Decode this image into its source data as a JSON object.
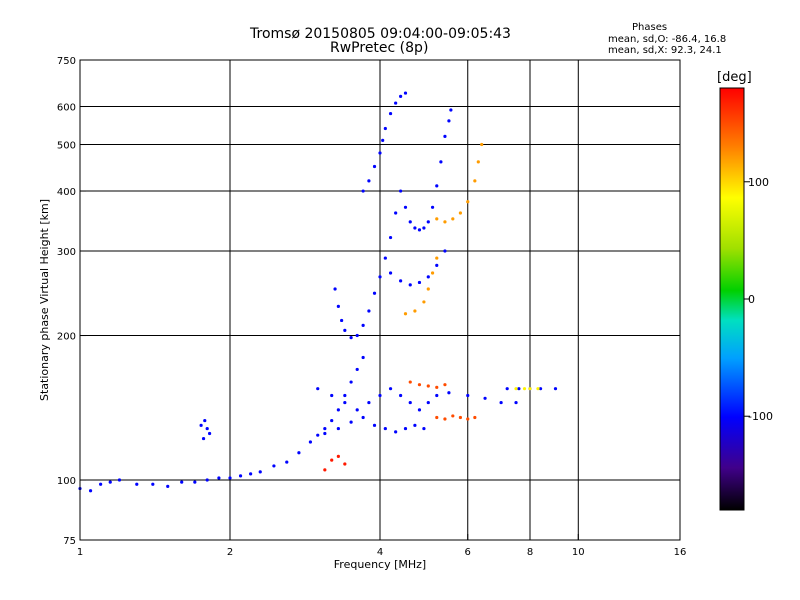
{
  "header": {
    "title_line1": "Tromsø 20150805 09:04:00-09:05:43",
    "title_line2": "RwPretec (8p)"
  },
  "phase_box": {
    "title": "Phases",
    "o_line": "mean, sd,O: -86.4, 16.8",
    "x_line": "mean, sd,X:  92.3, 24.1"
  },
  "colorbar": {
    "unit_label": "[deg]",
    "ticks": [
      "100",
      "0",
      "-100"
    ],
    "range": [
      -180,
      180
    ]
  },
  "chart_data": {
    "type": "scatter",
    "xlabel": "Frequency [MHz]",
    "ylabel": "Stationary phase Virtual Height [km]",
    "xscale": "log",
    "yscale": "log",
    "xlim": [
      1,
      16
    ],
    "ylim": [
      75,
      750
    ],
    "x_ticks": [
      1,
      2,
      4,
      6,
      8,
      10,
      16
    ],
    "y_ticks": [
      75,
      100,
      200,
      300,
      400,
      500,
      600,
      750
    ],
    "x_gridlines": [
      2,
      4,
      6,
      8,
      10
    ],
    "y_gridlines": [
      100,
      200,
      300,
      400,
      500,
      600
    ],
    "grid": true,
    "traces": [
      {
        "phase": -100,
        "points": [
          [
            1.0,
            96
          ],
          [
            1.05,
            95
          ],
          [
            1.1,
            98
          ],
          [
            1.15,
            99
          ],
          [
            1.2,
            100
          ],
          [
            1.3,
            98
          ],
          [
            1.4,
            98
          ],
          [
            1.5,
            97
          ],
          [
            1.6,
            99
          ],
          [
            1.7,
            99
          ],
          [
            1.8,
            100
          ],
          [
            1.9,
            101
          ],
          [
            2.0,
            101
          ],
          [
            2.1,
            102
          ],
          [
            2.2,
            103
          ],
          [
            2.3,
            104
          ],
          [
            2.45,
            107
          ],
          [
            2.6,
            109
          ],
          [
            2.75,
            114
          ],
          [
            2.9,
            120
          ],
          [
            3.0,
            124
          ],
          [
            3.1,
            128
          ],
          [
            3.2,
            133
          ],
          [
            3.3,
            140
          ],
          [
            3.4,
            150
          ],
          [
            3.5,
            160
          ],
          [
            3.6,
            170
          ],
          [
            3.7,
            180
          ]
        ]
      },
      {
        "phase": -100,
        "points": [
          [
            1.75,
            130
          ],
          [
            1.78,
            133
          ],
          [
            1.8,
            128
          ],
          [
            1.82,
            125
          ],
          [
            1.77,
            122
          ]
        ]
      },
      {
        "phase": -100,
        "points": [
          [
            3.25,
            250
          ],
          [
            3.3,
            230
          ],
          [
            3.35,
            215
          ],
          [
            3.4,
            205
          ],
          [
            3.5,
            198
          ],
          [
            3.6,
            200
          ],
          [
            3.7,
            210
          ],
          [
            3.8,
            225
          ],
          [
            3.9,
            245
          ],
          [
            4.0,
            265
          ],
          [
            4.1,
            290
          ],
          [
            4.2,
            320
          ],
          [
            4.3,
            360
          ],
          [
            4.4,
            400
          ],
          [
            4.5,
            370
          ],
          [
            4.6,
            345
          ],
          [
            4.7,
            335
          ],
          [
            4.8,
            332
          ],
          [
            4.9,
            335
          ],
          [
            5.0,
            345
          ],
          [
            5.1,
            370
          ],
          [
            5.2,
            410
          ],
          [
            5.3,
            460
          ],
          [
            5.4,
            520
          ],
          [
            5.5,
            560
          ],
          [
            5.55,
            590
          ]
        ]
      },
      {
        "phase": -100,
        "points": [
          [
            3.7,
            400
          ],
          [
            3.8,
            420
          ],
          [
            3.9,
            450
          ],
          [
            4.0,
            480
          ],
          [
            4.05,
            510
          ],
          [
            4.1,
            540
          ],
          [
            4.2,
            580
          ],
          [
            4.3,
            610
          ],
          [
            4.4,
            630
          ],
          [
            4.5,
            640
          ]
        ]
      },
      {
        "phase": -100,
        "points": [
          [
            3.0,
            155
          ],
          [
            3.2,
            150
          ],
          [
            3.4,
            145
          ],
          [
            3.6,
            140
          ],
          [
            3.8,
            145
          ],
          [
            4.0,
            150
          ],
          [
            4.2,
            155
          ],
          [
            4.4,
            150
          ],
          [
            4.6,
            145
          ],
          [
            4.8,
            140
          ],
          [
            5.0,
            145
          ],
          [
            5.2,
            150
          ],
          [
            5.5,
            152
          ],
          [
            6.0,
            150
          ],
          [
            6.5,
            148
          ],
          [
            7.0,
            145
          ],
          [
            7.5,
            145
          ]
        ]
      },
      {
        "phase": -100,
        "points": [
          [
            3.1,
            125
          ],
          [
            3.3,
            128
          ],
          [
            3.5,
            132
          ],
          [
            3.7,
            135
          ],
          [
            3.9,
            130
          ],
          [
            4.1,
            128
          ],
          [
            4.3,
            126
          ],
          [
            4.5,
            128
          ],
          [
            4.7,
            130
          ],
          [
            4.9,
            128
          ]
        ]
      },
      {
        "phase": -100,
        "points": [
          [
            4.2,
            270
          ],
          [
            4.4,
            260
          ],
          [
            4.6,
            255
          ],
          [
            4.8,
            258
          ],
          [
            5.0,
            265
          ],
          [
            5.2,
            280
          ],
          [
            5.4,
            300
          ]
        ]
      },
      {
        "phase": -100,
        "points": [
          [
            7.2,
            155
          ],
          [
            7.6,
            155
          ],
          [
            8.0,
            155
          ],
          [
            8.4,
            155
          ],
          [
            9.0,
            155
          ]
        ]
      },
      {
        "phase": 120,
        "points": [
          [
            5.2,
            350
          ],
          [
            5.4,
            345
          ],
          [
            5.6,
            350
          ],
          [
            5.8,
            360
          ],
          [
            6.0,
            380
          ],
          [
            6.2,
            420
          ],
          [
            6.3,
            460
          ],
          [
            6.4,
            500
          ]
        ]
      },
      {
        "phase": 120,
        "points": [
          [
            4.5,
            222
          ],
          [
            4.7,
            225
          ],
          [
            4.9,
            235
          ],
          [
            5.0,
            250
          ],
          [
            5.1,
            270
          ],
          [
            5.2,
            290
          ]
        ]
      },
      {
        "phase": 150,
        "points": [
          [
            4.6,
            160
          ],
          [
            4.8,
            158
          ],
          [
            5.0,
            157
          ],
          [
            5.2,
            156
          ],
          [
            5.4,
            158
          ]
        ]
      },
      {
        "phase": 150,
        "points": [
          [
            5.2,
            135
          ],
          [
            5.4,
            134
          ],
          [
            5.6,
            136
          ],
          [
            5.8,
            135
          ],
          [
            6.0,
            134
          ],
          [
            6.2,
            135
          ]
        ]
      },
      {
        "phase": 90,
        "points": [
          [
            7.5,
            155
          ],
          [
            7.8,
            155
          ],
          [
            8.0,
            155
          ],
          [
            8.3,
            155
          ]
        ]
      },
      {
        "phase": 170,
        "points": [
          [
            3.1,
            105
          ],
          [
            3.2,
            110
          ],
          [
            3.3,
            112
          ],
          [
            3.4,
            108
          ]
        ]
      }
    ]
  }
}
